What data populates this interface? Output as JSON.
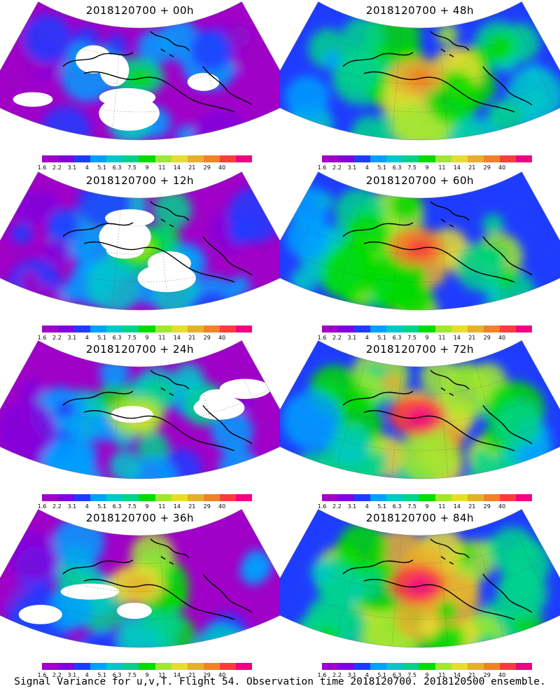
{
  "panels": [
    {
      "title": "2018120700 + 00h",
      "column": "left",
      "row": 0
    },
    {
      "title": "2018120700 + 48h",
      "column": "right",
      "row": 0
    },
    {
      "title": "2018120700 + 12h",
      "column": "left",
      "row": 1
    },
    {
      "title": "2018120700 + 60h",
      "column": "right",
      "row": 1
    },
    {
      "title": "2018120700 + 24h",
      "column": "left",
      "row": 2
    },
    {
      "title": "2018120700 + 72h",
      "column": "right",
      "row": 2
    },
    {
      "title": "2018120700 + 36h",
      "column": "left",
      "row": 3
    },
    {
      "title": "2018120700 + 84h",
      "column": "right",
      "row": 3
    }
  ],
  "legend": {
    "labels": [
      "1.6",
      "2.2",
      "3.1",
      "4",
      "5.1",
      "6.3",
      "7.5",
      "9",
      "11",
      "14",
      "21",
      "29",
      "40"
    ],
    "colors": [
      "#a000c8",
      "#8200dc",
      "#1e3cff",
      "#00a0ff",
      "#00c8c8",
      "#00d28c",
      "#00dc00",
      "#a0e632",
      "#e6dc32",
      "#e6af2d",
      "#f08228",
      "#fa3c3c",
      "#f00082"
    ]
  },
  "caption": "Signal Variance for u,v,T. Flight 54. Observation time 2018120700. 2018120500 ensemble."
}
